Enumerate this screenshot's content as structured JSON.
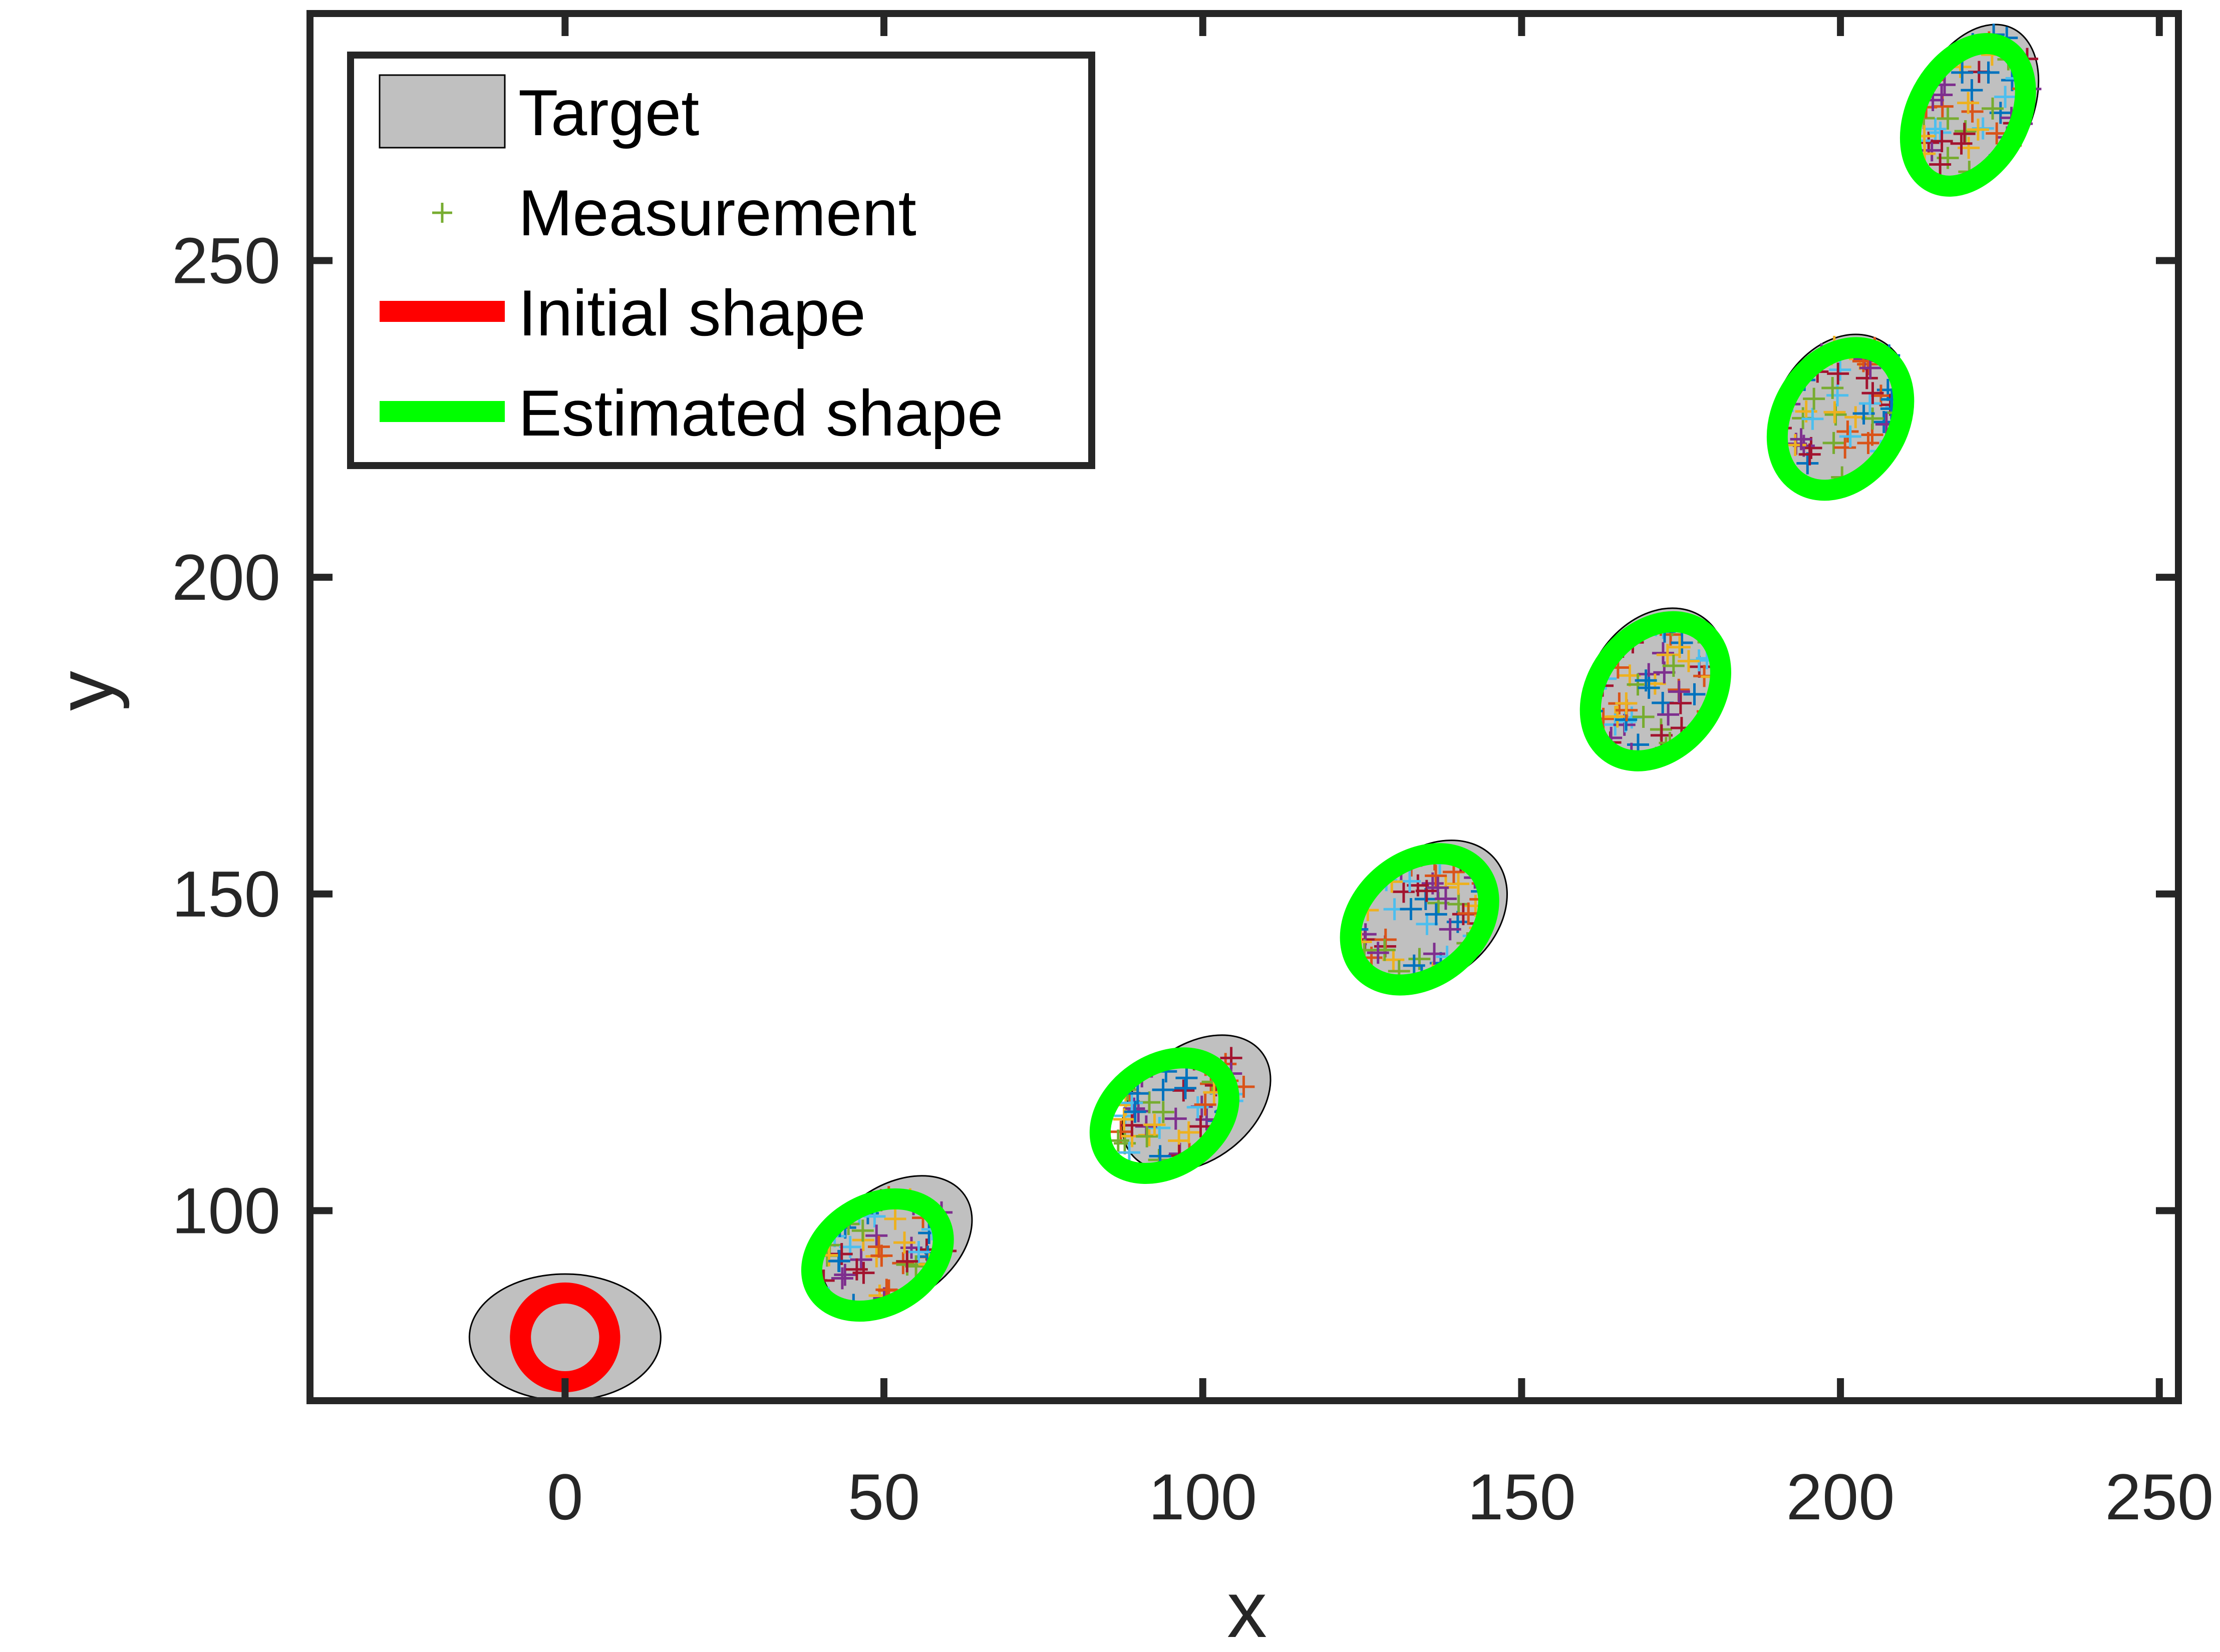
{
  "chart_data": {
    "type": "scatter",
    "xlabel": "x",
    "ylabel": "y",
    "xlim": [
      -40,
      253
    ],
    "ylim": [
      70,
      289
    ],
    "xticks": [
      0,
      50,
      100,
      150,
      200,
      250
    ],
    "yticks": [
      100,
      150,
      200,
      250
    ],
    "xtick_labels": [
      "0",
      "50",
      "100",
      "150",
      "200",
      "250"
    ],
    "ytick_labels": [
      "100",
      "150",
      "200",
      "250"
    ],
    "grid": false,
    "legend": {
      "position": "top-left",
      "entries": [
        {
          "label": "Target",
          "style": "gray-filled-ellipse"
        },
        {
          "label": "Measurement",
          "style": "plus-marker"
        },
        {
          "label": "Initial shape",
          "style": "red-line"
        },
        {
          "label": "Estimated shape",
          "style": "green-line"
        }
      ]
    },
    "colors": {
      "target_fill": "#c0c0c0",
      "target_edge": "#000000",
      "initial_shape": "#ff0000",
      "estimated_shape": "#00ff00",
      "measurement_palette": [
        "#0072bd",
        "#d95319",
        "#edb120",
        "#7e2f8e",
        "#77ac30",
        "#4dbeee",
        "#a2142f"
      ]
    },
    "targets": [
      {
        "cx": 0,
        "cy": 80,
        "a": 15,
        "b": 10,
        "angle_deg": 0
      },
      {
        "cx": 52,
        "cy": 95,
        "a": 13,
        "b": 9,
        "angle_deg": 35
      },
      {
        "cx": 99,
        "cy": 117,
        "a": 13,
        "b": 9,
        "angle_deg": 38
      },
      {
        "cx": 136,
        "cy": 147,
        "a": 13,
        "b": 10,
        "angle_deg": 42
      },
      {
        "cx": 171,
        "cy": 183,
        "a": 13,
        "b": 10,
        "angle_deg": 55
      },
      {
        "cx": 200,
        "cy": 226,
        "a": 13,
        "b": 10,
        "angle_deg": 60
      },
      {
        "cx": 221,
        "cy": 274,
        "a": 14,
        "b": 9,
        "angle_deg": 65
      }
    ],
    "initial_shape": {
      "cx": 0,
      "cy": 80,
      "rx": 7,
      "ry": 7,
      "angle_deg": 0
    },
    "estimated_shapes": [
      {
        "cx": 49,
        "cy": 93,
        "a": 11,
        "b": 8,
        "angle_deg": 30
      },
      {
        "cx": 94,
        "cy": 115,
        "a": 11,
        "b": 8,
        "angle_deg": 35
      },
      {
        "cx": 134,
        "cy": 146,
        "a": 12,
        "b": 9,
        "angle_deg": 40
      },
      {
        "cx": 171,
        "cy": 182,
        "a": 12,
        "b": 9,
        "angle_deg": 52
      },
      {
        "cx": 200,
        "cy": 225,
        "a": 12,
        "b": 9,
        "angle_deg": 58
      },
      {
        "cx": 220,
        "cy": 273,
        "a": 12,
        "b": 8,
        "angle_deg": 62
      }
    ],
    "measurement_clusters": [
      {
        "cx": 50,
        "cy": 94,
        "a": 12,
        "b": 8,
        "angle_deg": 33,
        "count": 60
      },
      {
        "cx": 96,
        "cy": 116,
        "a": 12,
        "b": 8,
        "angle_deg": 36,
        "count": 60
      },
      {
        "cx": 135,
        "cy": 147,
        "a": 12,
        "b": 9,
        "angle_deg": 41,
        "count": 60
      },
      {
        "cx": 171,
        "cy": 182,
        "a": 12,
        "b": 9,
        "angle_deg": 53,
        "count": 60
      },
      {
        "cx": 200,
        "cy": 226,
        "a": 12,
        "b": 9,
        "angle_deg": 59,
        "count": 60
      },
      {
        "cx": 221,
        "cy": 274,
        "a": 13,
        "b": 8,
        "angle_deg": 63,
        "count": 60
      }
    ]
  }
}
